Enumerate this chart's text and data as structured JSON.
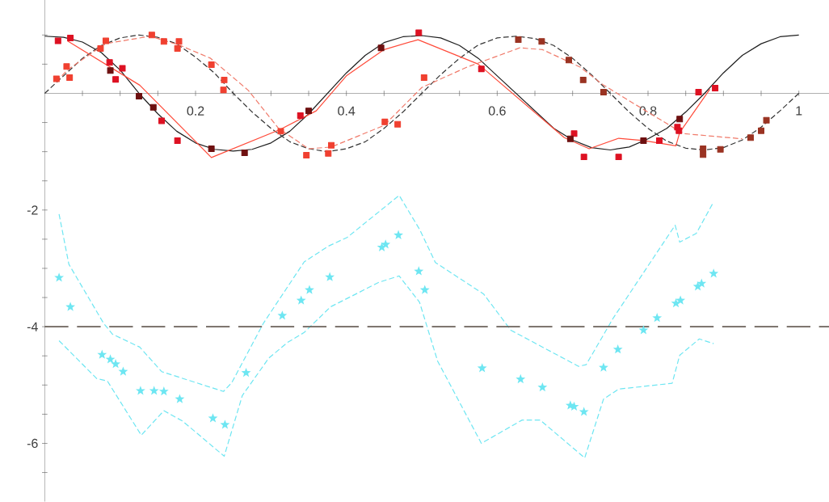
{
  "chart_data": {
    "type": "line",
    "xlim": [
      0,
      1.04
    ],
    "ylim": [
      -7,
      1.6
    ],
    "xticks": [
      {
        "value": 0.05,
        "label": null
      },
      {
        "value": 0.1,
        "label": null
      },
      {
        "value": 0.15,
        "label": null
      },
      0.2,
      {
        "value": 0.25,
        "label": null
      },
      {
        "value": 0.3,
        "label": null
      },
      {
        "value": 0.35,
        "label": null
      },
      0.4,
      {
        "value": 0.45,
        "label": null
      },
      {
        "value": 0.5,
        "label": null
      },
      {
        "value": 0.55,
        "label": null
      },
      0.6,
      {
        "value": 0.65,
        "label": null
      },
      {
        "value": 0.7,
        "label": null
      },
      {
        "value": 0.75,
        "label": null
      },
      0.8,
      {
        "value": 0.85,
        "label": null
      },
      {
        "value": 0.9,
        "label": null
      },
      {
        "value": 0.95,
        "label": null
      },
      1
    ],
    "yticks": [
      {
        "value": -6.5,
        "label": null
      },
      -6,
      {
        "value": -5.5,
        "label": null
      },
      {
        "value": -5,
        "label": null
      },
      {
        "value": -4.5,
        "label": null
      },
      -4,
      {
        "value": -3.5,
        "label": null
      },
      {
        "value": -3,
        "label": null
      },
      {
        "value": -2.5,
        "label": null
      },
      -2,
      {
        "value": -1.5,
        "label": null
      },
      {
        "value": -1,
        "label": null
      },
      {
        "value": -0.5,
        "label": null
      },
      {
        "value": 0.5,
        "label": null
      },
      {
        "value": 1,
        "label": null
      }
    ],
    "ref_lines": [
      {
        "axis": "y",
        "value": -4,
        "color": "#6b625a",
        "line_style": "dashed"
      }
    ],
    "series": [
      {
        "color": "#1e1e1e",
        "marker": "none",
        "line_style": "solid",
        "x": [
          0,
          0.025,
          0.05,
          0.075,
          0.1,
          0.125,
          0.15,
          0.175,
          0.2,
          0.225,
          0.25,
          0.275,
          0.3,
          0.325,
          0.35,
          0.375,
          0.4,
          0.425,
          0.45,
          0.475,
          0.5,
          0.525,
          0.55,
          0.575,
          0.6,
          0.625,
          0.65,
          0.675,
          0.7,
          0.725,
          0.75,
          0.775,
          0.8,
          0.825,
          0.85,
          0.875,
          0.9,
          0.925,
          0.95,
          0.975,
          1.0
        ],
        "values": [
          0.98,
          0.96,
          0.88,
          0.7,
          0.4,
          0.0,
          -0.35,
          -0.65,
          -0.85,
          -0.96,
          -0.99,
          -0.96,
          -0.85,
          -0.65,
          -0.35,
          0.0,
          0.35,
          0.65,
          0.87,
          0.97,
          0.99,
          0.95,
          0.82,
          0.6,
          0.3,
          0.0,
          -0.3,
          -0.6,
          -0.8,
          -0.93,
          -0.97,
          -0.92,
          -0.78,
          -0.6,
          -0.32,
          0.0,
          0.35,
          0.65,
          0.85,
          0.97,
          1.0
        ]
      },
      {
        "color": "#333333",
        "marker": "none",
        "line_style": "dashed",
        "x": [
          0,
          0.025,
          0.05,
          0.075,
          0.1,
          0.125,
          0.15,
          0.175,
          0.2,
          0.225,
          0.25,
          0.275,
          0.3,
          0.325,
          0.35,
          0.375,
          0.4,
          0.425,
          0.45,
          0.475,
          0.5,
          0.525,
          0.55,
          0.575,
          0.6,
          0.625,
          0.65,
          0.675,
          0.7,
          0.725,
          0.75,
          0.775,
          0.8,
          0.825,
          0.85,
          0.875,
          0.9,
          0.925,
          0.95,
          0.975,
          1.0
        ],
        "values": [
          0,
          0.3,
          0.6,
          0.82,
          0.95,
          1.0,
          0.96,
          0.85,
          0.62,
          0.35,
          0,
          -0.32,
          -0.6,
          -0.83,
          -0.95,
          -1.0,
          -0.95,
          -0.83,
          -0.6,
          -0.32,
          0,
          0.32,
          0.6,
          0.83,
          0.95,
          0.98,
          0.94,
          0.82,
          0.6,
          0.32,
          0,
          -0.32,
          -0.6,
          -0.82,
          -0.94,
          -0.97,
          -0.93,
          -0.8,
          -0.58,
          -0.3,
          0
        ]
      },
      {
        "color": "#ff4b3a",
        "marker": "none",
        "line_style": "solid",
        "x": [
          0.03,
          0.126,
          0.221,
          0.312,
          0.36,
          0.4,
          0.45,
          0.495,
          0.575,
          0.689,
          0.722,
          0.761,
          0.794,
          0.837,
          0.842,
          0.882
        ],
        "values": [
          0.9,
          0.14,
          -1.1,
          -0.62,
          -0.3,
          0.3,
          0.75,
          0.92,
          0.5,
          -0.76,
          -0.95,
          -0.77,
          -0.81,
          -0.9,
          -0.67,
          0.07
        ]
      },
      {
        "color": "#f07a6a",
        "marker": "none",
        "line_style": "dashed",
        "x": [
          0.0155,
          0.03,
          0.08,
          0.14,
          0.18,
          0.22,
          0.27,
          0.31,
          0.35,
          0.38,
          0.45,
          0.5,
          0.56,
          0.63,
          0.66,
          0.71,
          0.74,
          0.797,
          0.847,
          0.925
        ],
        "values": [
          0.2,
          0.4,
          0.85,
          0.98,
          0.82,
          0.6,
          0.05,
          -0.6,
          -0.95,
          -0.92,
          -0.55,
          0.1,
          0.45,
          0.78,
          0.75,
          0.45,
          0.15,
          -0.3,
          -0.69,
          -0.78
        ]
      },
      {
        "type": "scatter",
        "color": "#dd1122",
        "marker": "square",
        "x": [
          0.0176,
          0.034,
          0.086,
          0.103,
          0.094,
          0.155,
          0.176,
          0.339,
          0.496,
          0.579,
          0.702,
          0.715,
          0.761,
          0.815,
          0.839,
          0.841,
          0.867,
          0.889
        ],
        "values": [
          0.9,
          0.95,
          0.53,
          0.43,
          0.24,
          -0.47,
          -0.81,
          -0.38,
          1.04,
          0.42,
          -0.69,
          -1.09,
          -1.09,
          -0.81,
          -0.58,
          -0.64,
          0.02,
          0.09
        ]
      },
      {
        "type": "scatter",
        "color": "#6e1010",
        "marker": "square",
        "x": [
          0.087,
          0.125,
          0.144,
          0.221,
          0.265,
          0.35,
          0.446,
          0.697,
          0.794,
          0.842
        ],
        "values": [
          0.39,
          -0.05,
          -0.24,
          -0.95,
          -1.02,
          -0.3,
          0.78,
          -0.78,
          -0.81,
          -0.44
        ]
      },
      {
        "type": "scatter",
        "color": "#f04030",
        "marker": "square",
        "x": [
          0.0155,
          0.029,
          0.033,
          0.074,
          0.081,
          0.142,
          0.158,
          0.178,
          0.176,
          0.221,
          0.238,
          0.237,
          0.313,
          0.347,
          0.376,
          0.38,
          0.451,
          0.468,
          0.503
        ],
        "values": [
          0.25,
          0.46,
          0.27,
          0.77,
          0.9,
          1.0,
          0.89,
          0.89,
          0.77,
          0.49,
          0.23,
          0.06,
          -0.65,
          -1.06,
          -1.03,
          -0.89,
          -0.49,
          -0.53,
          0.27
        ]
      },
      {
        "type": "scatter",
        "color": "#9a3322",
        "marker": "square",
        "x": [
          0.628,
          0.659,
          0.695,
          0.714,
          0.741,
          0.873,
          0.873,
          0.896,
          0.936,
          0.95,
          0.957
        ],
        "values": [
          0.92,
          0.89,
          0.57,
          0.23,
          0.02,
          -0.95,
          -1.05,
          -0.96,
          -0.76,
          -0.64,
          -0.46
        ]
      },
      {
        "color": "#6ee6f2",
        "marker": "none",
        "line_style": "dashed",
        "x": [
          0.019,
          0.032,
          0.078,
          0.09,
          0.126,
          0.155,
          0.237,
          0.248,
          0.29,
          0.344,
          0.376,
          0.401,
          0.47,
          0.497,
          0.518,
          0.582,
          0.618,
          0.708,
          0.718,
          0.754,
          0.836,
          0.842,
          0.864,
          0.887
        ],
        "values": [
          -2.07,
          -2.93,
          -3.94,
          -4.13,
          -4.35,
          -4.77,
          -5.11,
          -4.96,
          -3.94,
          -2.89,
          -2.62,
          -2.47,
          -1.75,
          -2.33,
          -2.9,
          -3.44,
          -4.06,
          -4.68,
          -4.65,
          -3.85,
          -2.26,
          -2.55,
          -2.4,
          -1.86
        ]
      },
      {
        "color": "#6ee6f2",
        "marker": "none",
        "line_style": "dashed",
        "x": [
          0.019,
          0.069,
          0.083,
          0.128,
          0.158,
          0.183,
          0.238,
          0.262,
          0.297,
          0.322,
          0.344,
          0.379,
          0.443,
          0.47,
          0.497,
          0.521,
          0.579,
          0.633,
          0.657,
          0.707,
          0.716,
          0.741,
          0.761,
          0.832,
          0.842,
          0.868,
          0.887
        ],
        "values": [
          -4.24,
          -4.89,
          -4.93,
          -5.86,
          -5.44,
          -5.62,
          -6.22,
          -5.18,
          -4.54,
          -4.27,
          -4.1,
          -3.66,
          -3.24,
          -3.13,
          -3.58,
          -4.59,
          -6.0,
          -5.6,
          -5.6,
          -6.15,
          -6.25,
          -5.24,
          -5.07,
          -4.97,
          -4.49,
          -4.21,
          -4.29
        ]
      },
      {
        "type": "scatter",
        "color": "#6ee6f2",
        "marker": "star",
        "x": [
          0.019,
          0.034,
          0.076,
          0.087,
          0.094,
          0.104,
          0.127,
          0.145,
          0.158,
          0.179,
          0.223,
          0.239,
          0.267,
          0.315,
          0.34,
          0.351,
          0.378,
          0.447,
          0.452,
          0.469,
          0.496,
          0.504,
          0.58,
          0.631,
          0.66,
          0.697,
          0.702,
          0.715,
          0.741,
          0.76,
          0.794,
          0.812,
          0.837,
          0.843,
          0.866,
          0.871,
          0.887
        ],
        "values": [
          -3.16,
          -3.66,
          -4.48,
          -4.56,
          -4.64,
          -4.77,
          -5.1,
          -5.1,
          -5.11,
          -5.24,
          -5.57,
          -5.68,
          -4.79,
          -3.81,
          -3.55,
          -3.37,
          -3.15,
          -2.64,
          -2.59,
          -2.43,
          -3.05,
          -3.37,
          -4.71,
          -4.9,
          -5.04,
          -5.35,
          -5.37,
          -5.46,
          -4.7,
          -4.39,
          -4.06,
          -3.85,
          -3.6,
          -3.55,
          -3.31,
          -3.26,
          -3.09
        ]
      }
    ]
  }
}
